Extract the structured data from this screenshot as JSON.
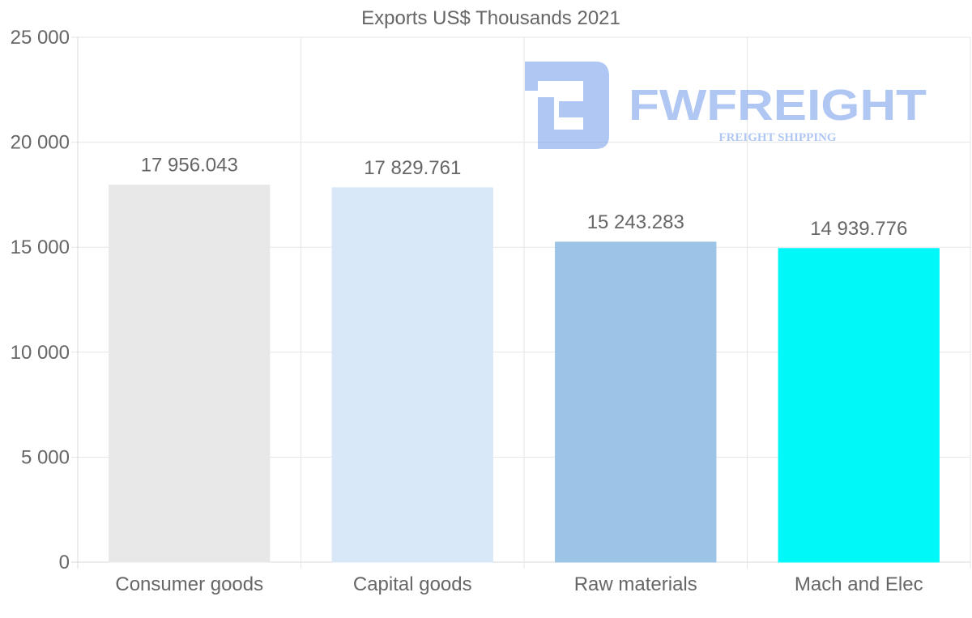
{
  "chart_data": {
    "type": "bar",
    "title": "Exports US$ Thousands 2021",
    "categories": [
      "Consumer goods",
      "Capital goods",
      "Raw materials",
      "Mach and Elec"
    ],
    "values": [
      17956.043,
      17829.761,
      15243.283,
      14939.776
    ],
    "value_labels": [
      "17 956.043",
      "17 829.761",
      "15 243.283",
      "14 939.776"
    ],
    "bar_colors": [
      "#e8e8e8",
      "#d8e8f8",
      "#9cc4e6",
      "#00f8f8"
    ],
    "ylim": [
      0,
      25000
    ],
    "yticks": [
      0,
      5000,
      10000,
      15000,
      20000,
      25000
    ],
    "ytick_labels": [
      "0",
      "5 000",
      "10 000",
      "15 000",
      "20 000",
      "25 000"
    ],
    "xlabel": "",
    "ylabel": "",
    "grid": true,
    "legend": "none"
  },
  "watermark": {
    "brand": "FWFREIGHT",
    "tagline": "FREIGHT SHIPPING",
    "color": "#6f9ae8"
  }
}
